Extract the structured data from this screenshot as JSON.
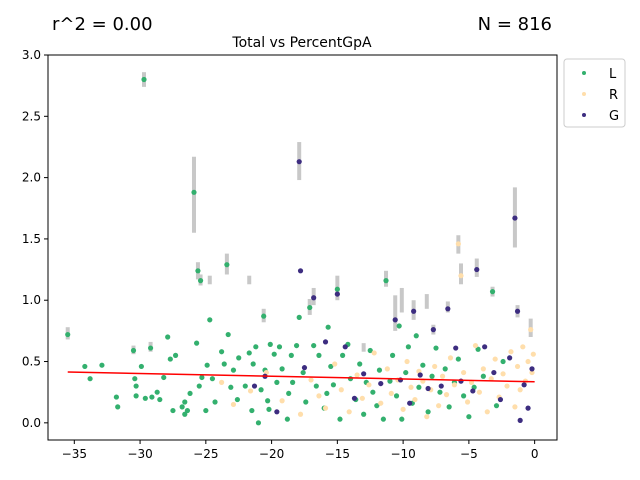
{
  "header": {
    "r2": "r^2 = 0.00",
    "n": "N = 816"
  },
  "chart_data": {
    "type": "scatter",
    "title": "Total vs PercentGpA",
    "xlabel": "",
    "ylabel": "",
    "xlim": [
      -37,
      1.7
    ],
    "ylim": [
      -0.14,
      3.0
    ],
    "xticks": [
      -35,
      -30,
      -25,
      -20,
      -15,
      -10,
      -5,
      0
    ],
    "yticks": [
      0.0,
      0.5,
      1.0,
      1.5,
      2.0,
      2.5,
      3.0
    ],
    "legend_position": "outside-top-right",
    "series": [
      {
        "name": "L",
        "color": "#33b06e",
        "points": [
          [
            -35.5,
            0.72
          ],
          [
            -34.2,
            0.46
          ],
          [
            -33.8,
            0.36
          ],
          [
            -32.9,
            0.47
          ],
          [
            -31.8,
            0.21
          ],
          [
            -31.7,
            0.13
          ],
          [
            -30.5,
            0.59
          ],
          [
            -30.4,
            0.36
          ],
          [
            -30.3,
            0.3
          ],
          [
            -30.3,
            0.22
          ],
          [
            -29.9,
            0.46
          ],
          [
            -29.7,
            2.8
          ],
          [
            -29.6,
            0.2
          ],
          [
            -29.2,
            0.61
          ],
          [
            -29.1,
            0.21
          ],
          [
            -28.7,
            0.25
          ],
          [
            -28.5,
            0.19
          ],
          [
            -28.2,
            0.37
          ],
          [
            -27.9,
            0.7
          ],
          [
            -27.7,
            0.52
          ],
          [
            -27.5,
            0.1
          ],
          [
            -27.3,
            0.55
          ],
          [
            -26.8,
            0.13
          ],
          [
            -26.6,
            0.17
          ],
          [
            -26.6,
            0.07
          ],
          [
            -26.4,
            0.1
          ],
          [
            -26.2,
            0.24
          ],
          [
            -25.9,
            1.88
          ],
          [
            -25.7,
            0.65
          ],
          [
            -25.6,
            1.24
          ],
          [
            -25.5,
            0.3
          ],
          [
            -25.4,
            1.16
          ],
          [
            -25.3,
            0.37
          ],
          [
            -25.0,
            0.1
          ],
          [
            -24.9,
            0.47
          ],
          [
            -24.7,
            0.84
          ],
          [
            -24.5,
            0.36
          ],
          [
            -24.3,
            0.17
          ],
          [
            -23.8,
            0.58
          ],
          [
            -23.6,
            0.48
          ],
          [
            -23.4,
            1.29
          ],
          [
            -23.3,
            0.72
          ],
          [
            -23.1,
            0.29
          ],
          [
            -22.9,
            0.43
          ],
          [
            -22.6,
            0.19
          ],
          [
            -22.5,
            0.53
          ],
          [
            -22.0,
            0.3
          ],
          [
            -21.7,
            0.57
          ],
          [
            -21.5,
            0.1
          ],
          [
            -21.4,
            0.48
          ],
          [
            -21.2,
            0.62
          ],
          [
            -21.0,
            0.0
          ],
          [
            -20.8,
            0.27
          ],
          [
            -20.6,
            0.87
          ],
          [
            -20.5,
            0.43
          ],
          [
            -20.3,
            0.18
          ],
          [
            -20.2,
            0.11
          ],
          [
            -20.1,
            0.64
          ],
          [
            -19.8,
            0.56
          ],
          [
            -19.6,
            0.33
          ],
          [
            -19.4,
            0.62
          ],
          [
            -19.2,
            0.44
          ],
          [
            -18.8,
            0.03
          ],
          [
            -18.7,
            0.24
          ],
          [
            -18.5,
            0.55
          ],
          [
            -18.4,
            0.33
          ],
          [
            -18.1,
            0.63
          ],
          [
            -17.9,
            0.86
          ],
          [
            -17.6,
            0.41
          ],
          [
            -17.4,
            0.17
          ],
          [
            -17.1,
            0.94
          ],
          [
            -16.8,
            0.63
          ],
          [
            -16.6,
            0.3
          ],
          [
            -16.4,
            0.55
          ],
          [
            -16.0,
            0.12
          ],
          [
            -15.8,
            0.24
          ],
          [
            -15.7,
            0.78
          ],
          [
            -15.5,
            0.46
          ],
          [
            -15.3,
            0.31
          ],
          [
            -15.0,
            1.09
          ],
          [
            -14.8,
            0.03
          ],
          [
            -14.6,
            0.55
          ],
          [
            -14.2,
            0.64
          ],
          [
            -14.0,
            0.36
          ],
          [
            -13.6,
            0.19
          ],
          [
            -13.3,
            0.48
          ],
          [
            -13.0,
            0.07
          ],
          [
            -12.8,
            0.33
          ],
          [
            -12.5,
            0.59
          ],
          [
            -12.3,
            0.25
          ],
          [
            -12.0,
            0.14
          ],
          [
            -11.8,
            0.43
          ],
          [
            -11.5,
            0.03
          ],
          [
            -11.3,
            1.16
          ],
          [
            -11.0,
            0.34
          ],
          [
            -10.8,
            0.55
          ],
          [
            -10.5,
            0.22
          ],
          [
            -10.3,
            0.79
          ],
          [
            -10.1,
            0.03
          ],
          [
            -9.8,
            0.41
          ],
          [
            -9.6,
            0.62
          ],
          [
            -9.3,
            0.16
          ],
          [
            -9.0,
            0.71
          ],
          [
            -8.8,
            0.29
          ],
          [
            -8.5,
            0.47
          ],
          [
            -8.1,
            0.09
          ],
          [
            -7.8,
            0.38
          ],
          [
            -7.5,
            0.61
          ],
          [
            -7.2,
            0.25
          ],
          [
            -6.8,
            0.44
          ],
          [
            -6.5,
            0.13
          ],
          [
            -6.1,
            0.33
          ],
          [
            -5.8,
            0.52
          ],
          [
            -5.4,
            0.22
          ],
          [
            -5.0,
            0.05
          ],
          [
            -4.6,
            0.29
          ],
          [
            -4.3,
            0.6
          ],
          [
            -3.9,
            0.38
          ],
          [
            -3.2,
            1.07
          ],
          [
            -2.9,
            0.14
          ],
          [
            -2.4,
            0.5
          ]
        ]
      },
      {
        "name": "R",
        "color": "#ffdeab",
        "points": [
          [
            -23.8,
            0.33
          ],
          [
            -22.9,
            0.15
          ],
          [
            -21.6,
            0.26
          ],
          [
            -20.4,
            0.41
          ],
          [
            -19.2,
            0.18
          ],
          [
            -17.8,
            0.07
          ],
          [
            -17.0,
            0.35
          ],
          [
            -16.4,
            0.22
          ],
          [
            -15.9,
            0.12
          ],
          [
            -15.2,
            0.48
          ],
          [
            -14.7,
            0.27
          ],
          [
            -14.1,
            0.09
          ],
          [
            -13.5,
            0.39
          ],
          [
            -13.1,
            0.2
          ],
          [
            -12.6,
            0.31
          ],
          [
            -12.2,
            0.57
          ],
          [
            -11.7,
            0.16
          ],
          [
            -11.2,
            0.44
          ],
          [
            -10.9,
            0.24
          ],
          [
            -10.4,
            0.35
          ],
          [
            -10.0,
            0.11
          ],
          [
            -9.7,
            0.5
          ],
          [
            -9.4,
            0.29
          ],
          [
            -9.1,
            0.19
          ],
          [
            -8.8,
            0.42
          ],
          [
            -8.5,
            0.34
          ],
          [
            -8.2,
            0.05
          ],
          [
            -7.9,
            0.27
          ],
          [
            -7.6,
            0.46
          ],
          [
            -7.3,
            0.14
          ],
          [
            -7.0,
            0.38
          ],
          [
            -6.7,
            0.23
          ],
          [
            -6.4,
            0.53
          ],
          [
            -6.1,
            0.31
          ],
          [
            -5.8,
            1.46
          ],
          [
            -5.6,
            1.2
          ],
          [
            -5.4,
            0.41
          ],
          [
            -5.1,
            0.17
          ],
          [
            -4.8,
            0.33
          ],
          [
            -4.5,
            0.63
          ],
          [
            -4.2,
            0.25
          ],
          [
            -3.9,
            0.44
          ],
          [
            -3.6,
            0.09
          ],
          [
            -3.3,
            0.36
          ],
          [
            -3.0,
            0.52
          ],
          [
            -2.7,
            0.21
          ],
          [
            -2.4,
            0.4
          ],
          [
            -2.1,
            0.3
          ],
          [
            -1.8,
            0.58
          ],
          [
            -1.5,
            0.13
          ],
          [
            -1.3,
            0.46
          ],
          [
            -1.1,
            0.27
          ],
          [
            -0.9,
            0.62
          ],
          [
            -0.7,
            0.34
          ],
          [
            -0.5,
            0.5
          ],
          [
            -0.3,
            0.76
          ],
          [
            -0.2,
            0.41
          ],
          [
            -0.1,
            0.56
          ]
        ]
      },
      {
        "name": "G",
        "color": "#3d2d80",
        "points": [
          [
            -21.3,
            0.3
          ],
          [
            -20.5,
            0.38
          ],
          [
            -19.6,
            0.09
          ],
          [
            -17.9,
            2.13
          ],
          [
            -17.8,
            1.24
          ],
          [
            -17.5,
            0.45
          ],
          [
            -16.8,
            1.02
          ],
          [
            -15.9,
            0.66
          ],
          [
            -15.0,
            1.05
          ],
          [
            -14.4,
            0.62
          ],
          [
            -13.7,
            0.2
          ],
          [
            -13.0,
            0.4
          ],
          [
            -11.7,
            0.32
          ],
          [
            -10.6,
            0.84
          ],
          [
            -10.2,
            0.35
          ],
          [
            -9.5,
            0.16
          ],
          [
            -9.2,
            0.91
          ],
          [
            -8.7,
            0.39
          ],
          [
            -8.1,
            0.28
          ],
          [
            -7.7,
            0.76
          ],
          [
            -7.1,
            0.3
          ],
          [
            -6.6,
            0.93
          ],
          [
            -6.0,
            0.61
          ],
          [
            -5.6,
            0.34
          ],
          [
            -4.7,
            0.26
          ],
          [
            -4.4,
            1.25
          ],
          [
            -3.8,
            0.62
          ],
          [
            -3.1,
            0.41
          ],
          [
            -2.6,
            0.19
          ],
          [
            -1.9,
            0.53
          ],
          [
            -1.5,
            1.67
          ],
          [
            -1.3,
            0.91
          ],
          [
            -1.1,
            0.02
          ],
          [
            -0.8,
            0.31
          ],
          [
            -0.5,
            0.12
          ],
          [
            -0.2,
            0.44
          ]
        ]
      }
    ],
    "error_bars": [
      [
        -35.5,
        0.68,
        0.78
      ],
      [
        -30.5,
        0.56,
        0.63
      ],
      [
        -29.7,
        2.74,
        2.86
      ],
      [
        -29.2,
        0.58,
        0.66
      ],
      [
        -25.9,
        1.55,
        2.17
      ],
      [
        -25.6,
        1.17,
        1.31
      ],
      [
        -25.4,
        1.12,
        1.21
      ],
      [
        -24.7,
        1.13,
        1.2
      ],
      [
        -23.4,
        1.21,
        1.38
      ],
      [
        -21.7,
        1.13,
        1.2
      ],
      [
        -20.6,
        0.82,
        0.93
      ],
      [
        -17.9,
        1.98,
        2.29
      ],
      [
        -17.1,
        0.88,
        1.01
      ],
      [
        -16.8,
        0.96,
        1.1
      ],
      [
        -15.0,
        1.0,
        1.2
      ],
      [
        -13.0,
        0.58,
        0.65
      ],
      [
        -11.3,
        1.11,
        1.24
      ],
      [
        -10.6,
        0.75,
        1.04
      ],
      [
        -10.1,
        0.9,
        1.1
      ],
      [
        -9.2,
        0.84,
        1.0
      ],
      [
        -8.2,
        0.93,
        1.05
      ],
      [
        -7.7,
        0.72,
        0.8
      ],
      [
        -6.6,
        0.9,
        0.99
      ],
      [
        -5.8,
        1.38,
        1.53
      ],
      [
        -5.6,
        1.13,
        1.3
      ],
      [
        -4.4,
        1.19,
        1.34
      ],
      [
        -3.2,
        1.03,
        1.11
      ],
      [
        -1.5,
        1.43,
        1.92
      ],
      [
        -1.3,
        0.86,
        0.96
      ],
      [
        -0.3,
        0.7,
        0.85
      ]
    ],
    "trendline": {
      "color": "#ff0000",
      "x": [
        -35.5,
        0.0
      ],
      "y": [
        0.415,
        0.335
      ]
    }
  }
}
